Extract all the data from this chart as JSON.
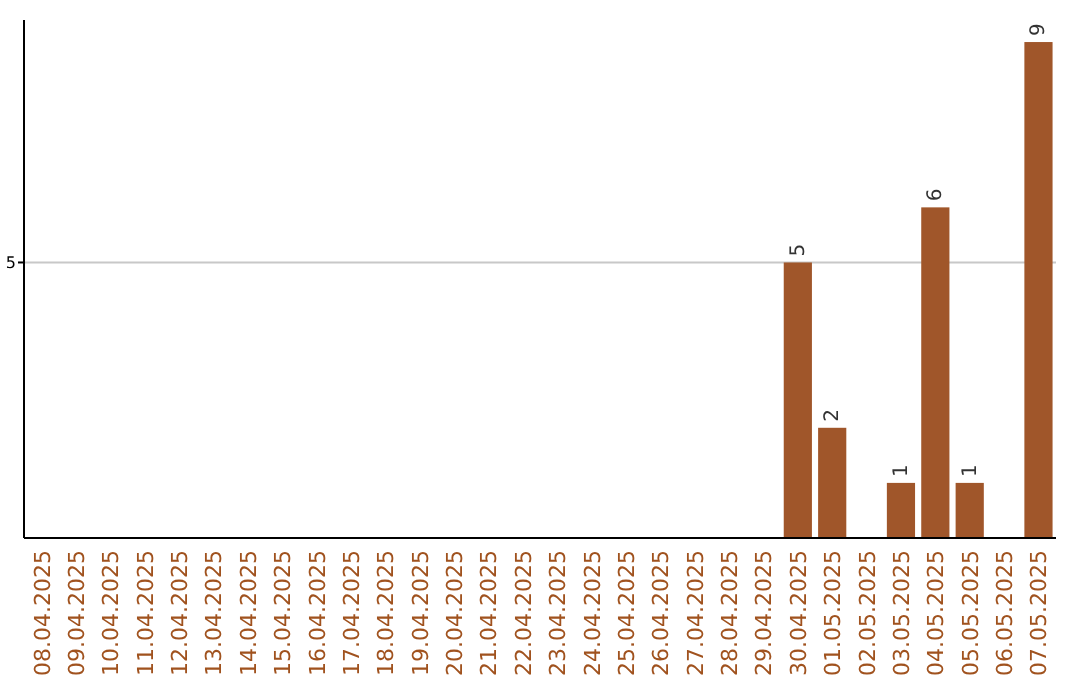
{
  "chart_data": {
    "type": "bar",
    "categories": [
      "08.04.2025",
      "09.04.2025",
      "10.04.2025",
      "11.04.2025",
      "12.04.2025",
      "13.04.2025",
      "14.04.2025",
      "15.04.2025",
      "16.04.2025",
      "17.04.2025",
      "18.04.2025",
      "19.04.2025",
      "20.04.2025",
      "21.04.2025",
      "22.04.2025",
      "23.04.2025",
      "24.04.2025",
      "25.04.2025",
      "26.04.2025",
      "27.04.2025",
      "28.04.2025",
      "29.04.2025",
      "30.04.2025",
      "01.05.2025",
      "02.05.2025",
      "03.05.2025",
      "04.05.2025",
      "05.05.2025",
      "06.05.2025",
      "07.05.2025"
    ],
    "values": [
      null,
      null,
      null,
      null,
      null,
      null,
      null,
      null,
      null,
      null,
      null,
      null,
      null,
      null,
      null,
      null,
      null,
      null,
      null,
      null,
      null,
      null,
      5,
      2,
      null,
      1,
      6,
      1,
      null,
      9
    ],
    "data_labels": true,
    "color": "#a0562a",
    "ylim": [
      0,
      9.4
    ],
    "yticks": [
      5
    ],
    "grid": "y"
  }
}
